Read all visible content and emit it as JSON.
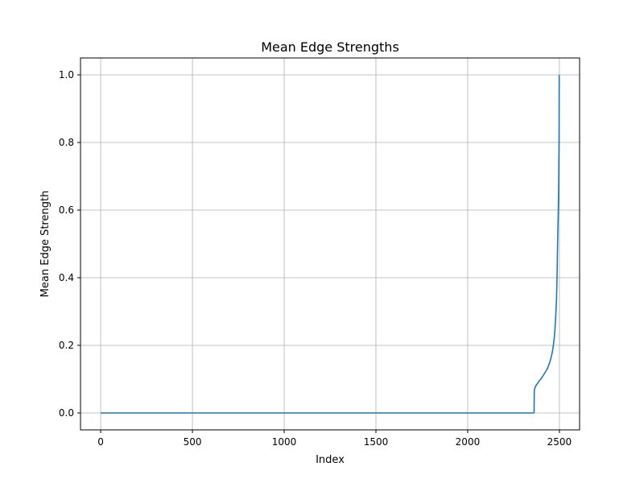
{
  "chart_data": {
    "type": "line",
    "title": "Mean Edge Strengths",
    "xlabel": "Index",
    "ylabel": "Mean Edge Strength",
    "xlim": [
      -110,
      2610
    ],
    "ylim": [
      -0.05,
      1.05
    ],
    "xticks": [
      0,
      500,
      1000,
      1500,
      2000,
      2500
    ],
    "yticks": [
      0.0,
      0.2,
      0.4,
      0.6,
      0.8,
      1.0
    ],
    "ytick_labels": [
      "0.0",
      "0.2",
      "0.4",
      "0.6",
      "0.8",
      "1.0"
    ],
    "grid": true,
    "series_color": "#1f77b4",
    "series": [
      {
        "x": [
          0,
          2360,
          2362,
          2363,
          2368,
          2375,
          2382,
          2390,
          2398,
          2405,
          2412,
          2420,
          2428,
          2436,
          2443,
          2450,
          2456,
          2462,
          2467,
          2472,
          2476,
          2480,
          2484,
          2487,
          2490,
          2492,
          2494,
          2496,
          2498,
          2499
        ],
        "y": [
          0,
          0,
          0.001,
          0.067,
          0.077,
          0.083,
          0.088,
          0.095,
          0.1,
          0.105,
          0.111,
          0.118,
          0.125,
          0.133,
          0.143,
          0.154,
          0.167,
          0.182,
          0.2,
          0.222,
          0.25,
          0.286,
          0.333,
          0.4,
          0.5,
          0.55,
          0.6,
          0.667,
          0.8,
          1.0
        ]
      }
    ]
  }
}
